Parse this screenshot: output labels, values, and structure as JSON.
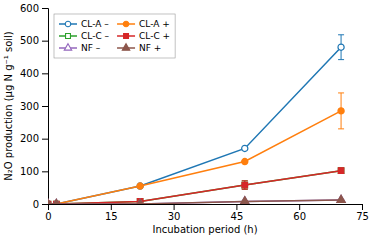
{
  "chart_data": {
    "type": "line",
    "x": [
      0,
      2,
      22,
      47,
      70
    ],
    "series": [
      {
        "name": "CL-A –",
        "values": [
          0,
          0,
          55,
          170,
          480
        ],
        "errors": [
          0,
          0,
          0,
          0,
          38
        ],
        "marker": "circle-open"
      },
      {
        "name": "CL-A +",
        "values": [
          0,
          0,
          55,
          130,
          285
        ],
        "errors": [
          0,
          0,
          0,
          0,
          55
        ],
        "marker": "circle"
      },
      {
        "name": "CL-C –",
        "values": [
          0,
          0,
          8,
          58,
          102
        ],
        "errors": [
          0,
          0,
          0,
          13,
          8
        ],
        "marker": "square-open"
      },
      {
        "name": "CL-C +",
        "values": [
          0,
          0,
          8,
          58,
          102
        ],
        "errors": [
          0,
          0,
          0,
          13,
          8
        ],
        "marker": "square"
      },
      {
        "name": "NF –",
        "values": [
          0,
          0,
          0,
          8,
          12
        ],
        "errors": [
          0,
          0,
          0,
          0,
          0
        ],
        "marker": "triangle-up-open"
      },
      {
        "name": "NF +",
        "values": [
          0,
          0,
          0,
          8,
          12
        ],
        "errors": [
          0,
          0,
          0,
          0,
          0
        ],
        "marker": "triangle-up"
      }
    ],
    "xlabel": "Incubation period (h)",
    "ylabel": "N₂O production (μg N g⁻¹ soil)",
    "xlim": [
      0,
      75
    ],
    "ylim": [
      0,
      600
    ],
    "xticks": [
      0,
      15,
      30,
      45,
      60,
      75
    ],
    "yticks": [
      0,
      100,
      200,
      300,
      400,
      500,
      600
    ],
    "grid": false,
    "legend": "upper-left"
  }
}
